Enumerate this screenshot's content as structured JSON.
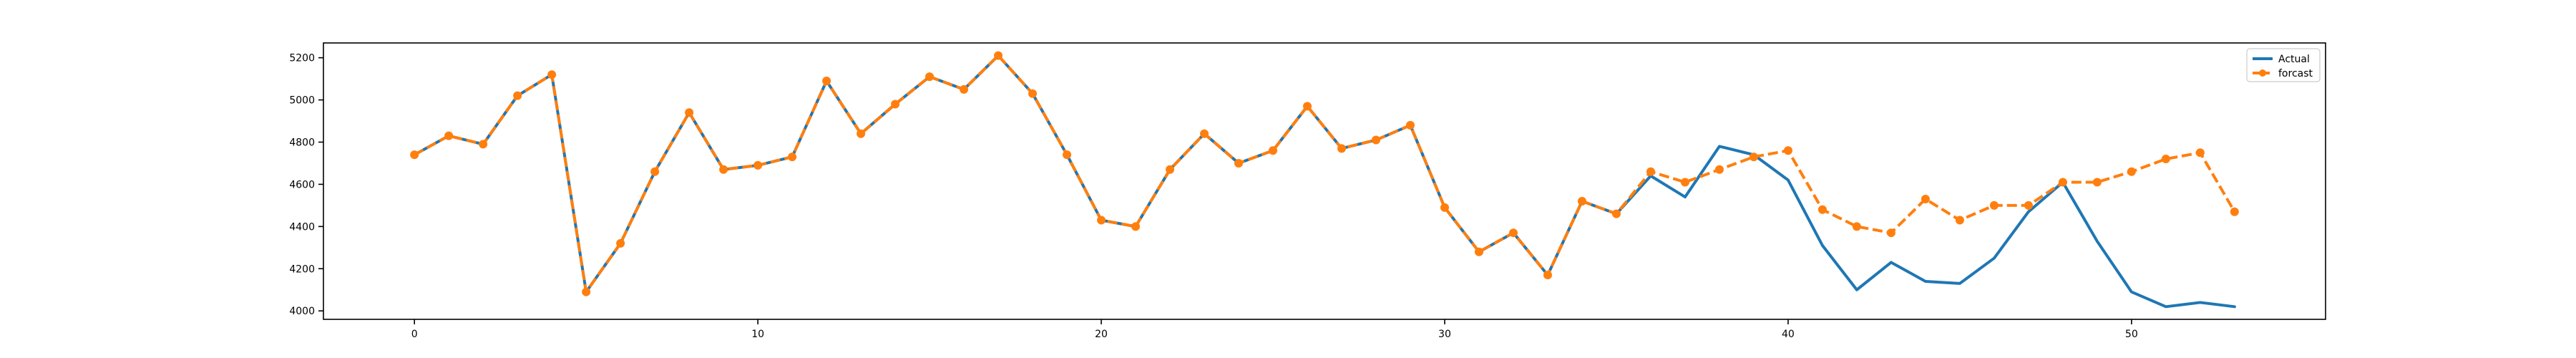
{
  "chart_data": {
    "type": "line",
    "title": "",
    "xlabel": "",
    "ylabel": "",
    "xlim": [
      -2.65,
      55.65
    ],
    "ylim": [
      3960,
      5270
    ],
    "xticks": [
      0,
      10,
      20,
      30,
      40,
      50
    ],
    "yticks": [
      4000,
      4200,
      4400,
      4600,
      4800,
      5000,
      5200
    ],
    "grid": false,
    "legend": {
      "position": "top-right"
    },
    "x": [
      0,
      1,
      2,
      3,
      4,
      5,
      6,
      7,
      8,
      9,
      10,
      11,
      12,
      13,
      14,
      15,
      16,
      17,
      18,
      19,
      20,
      21,
      22,
      23,
      24,
      25,
      26,
      27,
      28,
      29,
      30,
      31,
      32,
      33,
      34,
      35,
      36,
      37,
      38,
      39,
      40,
      41,
      42,
      43,
      44,
      45,
      46,
      47,
      48,
      49,
      50,
      51,
      52,
      53
    ],
    "series": [
      {
        "name": "Actual",
        "color": "#1f77b4",
        "style": "solid",
        "marker": "none",
        "values": [
          4740,
          4830,
          4790,
          5020,
          5120,
          4090,
          4320,
          4660,
          4940,
          4670,
          4690,
          4730,
          5090,
          4840,
          4980,
          5110,
          5050,
          5210,
          5030,
          4740,
          4430,
          4400,
          4670,
          4840,
          4700,
          4760,
          4970,
          4770,
          4810,
          4880,
          4490,
          4280,
          4370,
          4170,
          4520,
          4460,
          4640,
          4540,
          4780,
          4740,
          4620,
          4310,
          4100,
          4230,
          4140,
          4130,
          4250,
          4470,
          4610,
          4330,
          4090,
          4020,
          4040,
          4020
        ]
      },
      {
        "name": "forcast",
        "color": "#ff7f0e",
        "style": "dashed",
        "marker": "circle",
        "values": [
          4740,
          4830,
          4790,
          5020,
          5120,
          4090,
          4320,
          4660,
          4940,
          4670,
          4690,
          4730,
          5090,
          4840,
          4980,
          5110,
          5050,
          5210,
          5030,
          4740,
          4430,
          4400,
          4670,
          4840,
          4700,
          4760,
          4970,
          4770,
          4810,
          4880,
          4490,
          4280,
          4370,
          4170,
          4520,
          4460,
          4660,
          4610,
          4670,
          4730,
          4760,
          4480,
          4400,
          4370,
          4530,
          4430,
          4500,
          4500,
          4610,
          4610,
          4660,
          4720,
          4750,
          4470
        ]
      }
    ]
  }
}
